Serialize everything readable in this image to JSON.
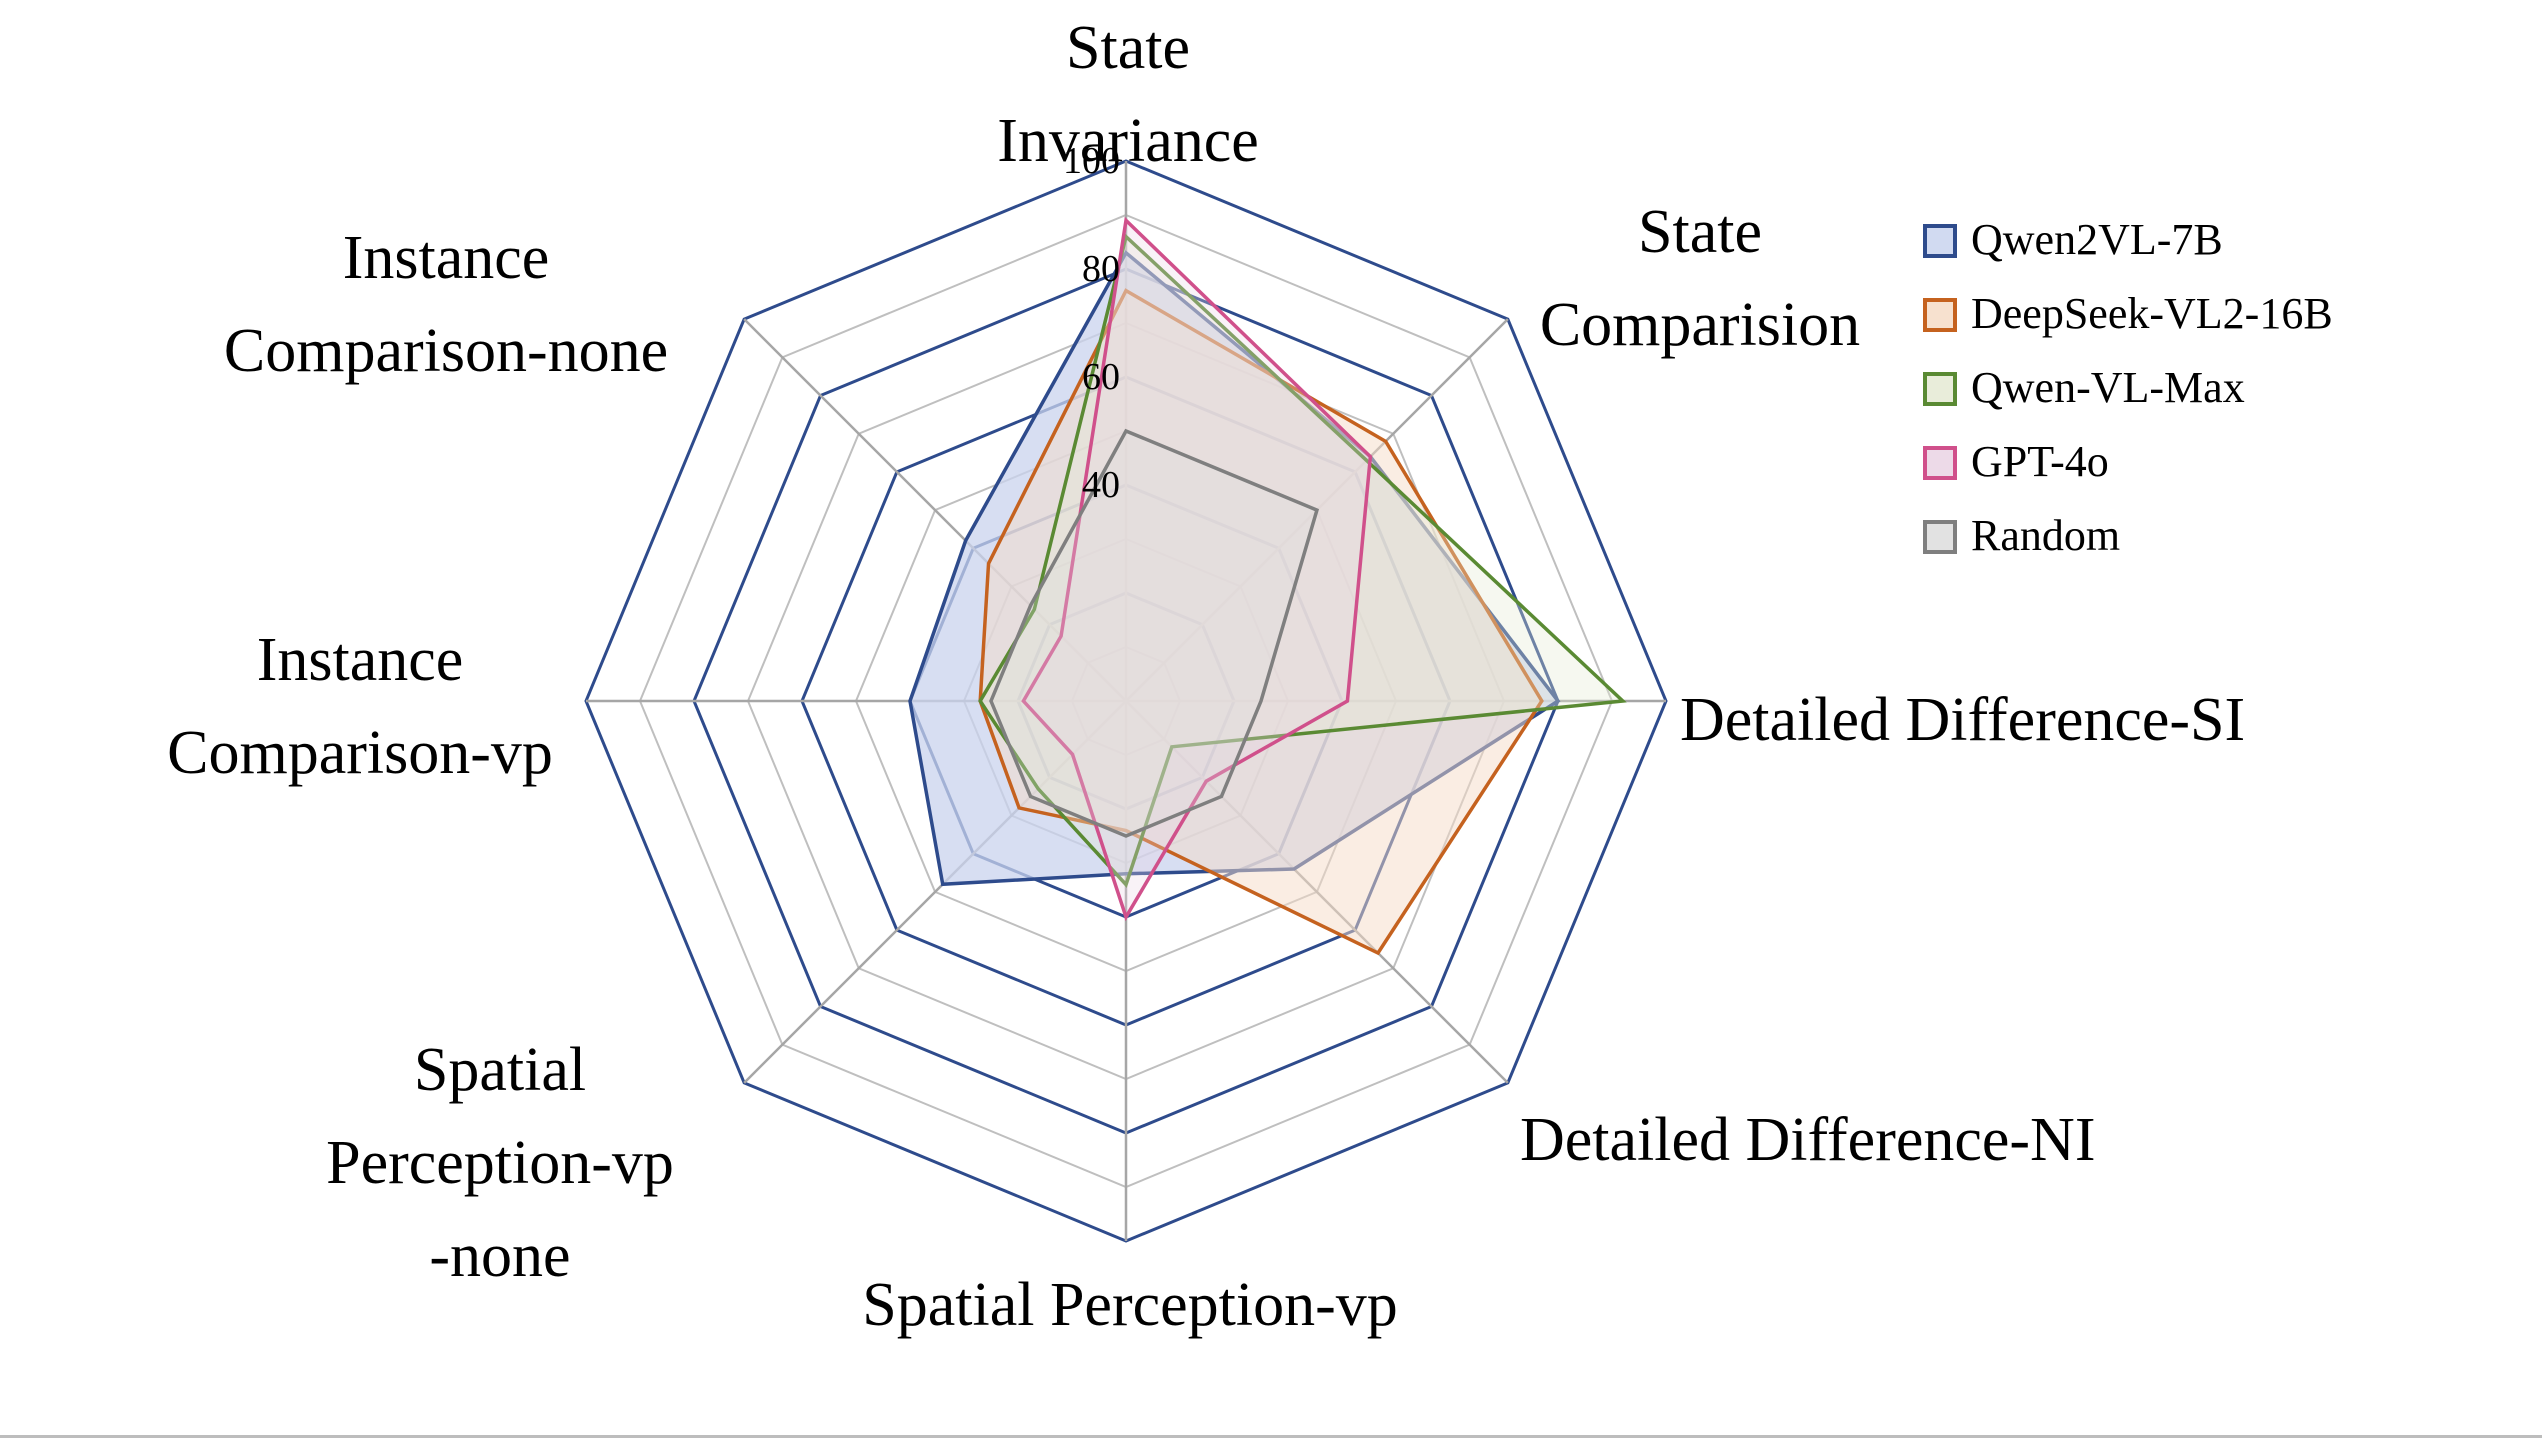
{
  "chart_data": {
    "type": "radar",
    "title": "",
    "axes": [
      [
        "State",
        "Invariance"
      ],
      [
        "State",
        "Comparision"
      ],
      [
        "Detailed Difference-SI"
      ],
      [
        "Detailed Difference-NI"
      ],
      [
        "Spatial Perception-vp"
      ],
      [
        "Spatial",
        "Perception-vp",
        "-none"
      ],
      [
        "Instance",
        "Comparison-vp"
      ],
      [
        "Instance",
        "Comparison-none"
      ]
    ],
    "rlim": [
      0,
      100
    ],
    "ticks": [
      40,
      60,
      80,
      100
    ],
    "tick_labels": [
      "40",
      "60",
      "80",
      "100"
    ],
    "grid": true,
    "legend_position": "top-right",
    "series": [
      {
        "name": "Qwen2VL-7B",
        "values": [
          83,
          64,
          80,
          44,
          32,
          48,
          40,
          42
        ],
        "color": "#2e4b8c",
        "fill": "#c9d3ee",
        "fill_opacity": 0.75
      },
      {
        "name": "DeepSeek-VL2-16B",
        "values": [
          76,
          68,
          77,
          66,
          24,
          28,
          27,
          36
        ],
        "color": "#c5621f",
        "fill": "#f6dcc7",
        "fill_opacity": 0.5
      },
      {
        "name": "Qwen-VL-Max",
        "values": [
          86,
          63,
          92,
          12,
          34,
          23,
          27,
          24
        ],
        "color": "#5a8a33",
        "fill": "#e5ead3",
        "fill_opacity": 0.35
      },
      {
        "name": "GPT-4o",
        "values": [
          89,
          64,
          41,
          21,
          40,
          14,
          19,
          17
        ],
        "color": "#d0508b",
        "fill": "#ead4e4",
        "fill_opacity": 0.3
      },
      {
        "name": "Random",
        "values": [
          50,
          50,
          25,
          25,
          25,
          25,
          25,
          25
        ],
        "color": "#7f7f7f",
        "fill": "#dddddd",
        "fill_opacity": 0.3
      }
    ]
  }
}
